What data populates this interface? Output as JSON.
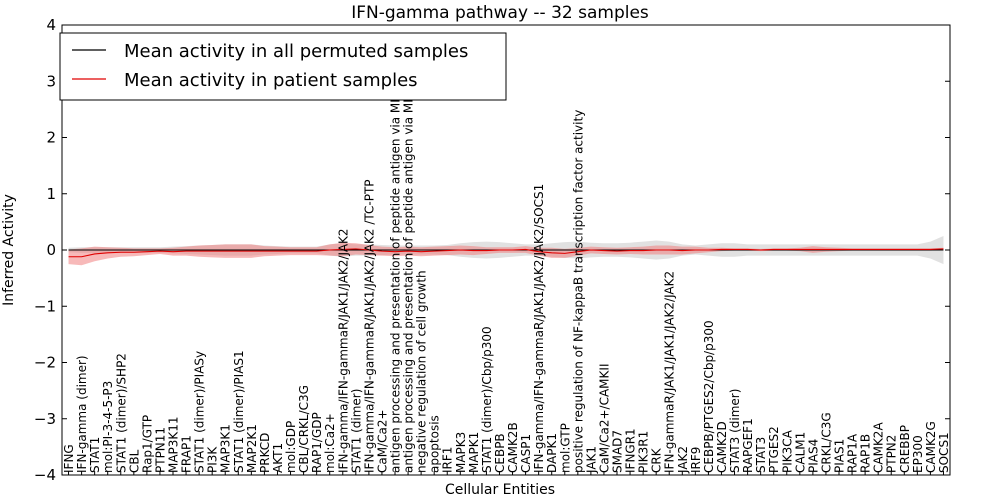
{
  "chart_data": {
    "type": "line",
    "title": "IFN-gamma pathway -- 32 samples",
    "xlabel": "Cellular Entities",
    "ylabel": "Inferred Activity",
    "ylim": [
      -4,
      4
    ],
    "yticks": [
      -4,
      -3,
      -2,
      -1,
      0,
      1,
      2,
      3,
      4
    ],
    "ytick_labels": [
      "−4",
      "−3",
      "−2",
      "−1",
      "0",
      "1",
      "2",
      "3",
      "4"
    ],
    "legend_position": "top-left",
    "categories": [
      "IFNG",
      "IFN-gamma (dimer)",
      "STAT1",
      "mol:PI-3-4-5-P3",
      "STAT1 (dimer)/SHP2",
      "CBL",
      "Rap1/GTP",
      "PTPN11",
      "MAP3K11",
      "FRAP1",
      "STAT1 (dimer)/PIASy",
      "PI3K",
      "MAP3K1",
      "STAT1 (dimer)/PIAS1",
      "MAP2K1",
      "PRKCD",
      "AKT1",
      "mol:GDP",
      "CBL/CRKL/C3G",
      "RAP1/GDP",
      "mol:Ca2+",
      "IFN-gamma/IFN-gammaR/JAK1/JAK2/JAK2",
      "STAT1 (dimer)",
      "IFN-gamma/IFN-gammaR/JAK1/JAK2/JAK2  /TC-PTP",
      "CaM/Ca2+",
      "antigen processing and presentation of peptide antigen via MHC class I",
      "antigen processing and presentation of peptide antigen via MHC class II",
      "negative regulation of cell growth",
      "apoptosis",
      "IRF1",
      "MAPK3",
      "MAPK1",
      "STAT1 (dimer)/Cbp/p300",
      "CEBPB",
      "CAMK2B",
      "CASP1",
      "IFN-gamma/IFN-gammaR/JAK1/JAK2/JAK2/SOCS1",
      "DAPK1",
      "mol:GTP",
      "positive regulation of NF-kappaB transcription factor activity",
      "JAK1",
      "CaM/Ca2+/CAMKII",
      "SMAD7",
      "IFNGR1",
      "PIK3R1",
      "CRK",
      "IFN-gammaR/JAK1/JAK1/JAK2/JAK2",
      "JAK2",
      "IRF9",
      "CEBPB/PTGES2/Cbp/p300",
      "CAMK2D",
      "STAT3 (dimer)",
      "RAPGEF1",
      "STAT3",
      "PTGES2",
      "PIK3CA",
      "CALM1",
      "PIAS4",
      "CRKL/C3G",
      "PIAS1",
      "RAP1A",
      "RAP1B",
      "CAMK2A",
      "PTPN2",
      "CREBBP",
      "EP300",
      "CAMK2G",
      "SOCS1"
    ],
    "series": [
      {
        "name": "Mean activity in all permuted samples",
        "color": "#000000",
        "values": [
          0,
          0,
          0,
          0,
          0,
          0,
          0,
          0,
          0,
          0,
          0,
          0,
          0,
          0,
          0,
          0,
          0,
          0,
          0,
          0,
          0,
          0,
          0,
          0,
          0,
          0,
          0,
          0,
          0,
          0,
          0,
          0,
          0,
          0,
          0,
          0,
          0,
          0,
          0,
          0,
          0,
          0,
          0,
          0,
          0,
          0,
          0,
          0,
          0,
          0,
          0,
          0,
          0,
          0,
          0,
          0,
          0,
          0,
          0,
          0,
          0,
          0,
          0,
          0,
          0,
          0,
          0,
          0
        ],
        "band": [
          0.04,
          0.05,
          0.05,
          0.05,
          0.05,
          0.05,
          0.05,
          0.05,
          0.06,
          0.07,
          0.08,
          0.09,
          0.1,
          0.1,
          0.1,
          0.08,
          0.07,
          0.06,
          0.06,
          0.06,
          0.1,
          0.12,
          0.1,
          0.1,
          0.09,
          0.08,
          0.08,
          0.08,
          0.08,
          0.09,
          0.12,
          0.14,
          0.15,
          0.14,
          0.12,
          0.1,
          0.1,
          0.12,
          0.14,
          0.15,
          0.13,
          0.12,
          0.12,
          0.13,
          0.15,
          0.17,
          0.15,
          0.1,
          0.08,
          0.1,
          0.12,
          0.12,
          0.1,
          0.1,
          0.1,
          0.1,
          0.1,
          0.1,
          0.1,
          0.1,
          0.1,
          0.1,
          0.1,
          0.1,
          0.1,
          0.1,
          0.15,
          0.25
        ]
      },
      {
        "name": "Mean activity in patient samples",
        "color": "#e00000",
        "values": [
          -0.12,
          -0.12,
          -0.07,
          -0.05,
          -0.04,
          -0.04,
          -0.03,
          -0.02,
          -0.03,
          -0.02,
          -0.02,
          -0.02,
          -0.02,
          -0.02,
          -0.02,
          -0.02,
          -0.02,
          -0.02,
          -0.02,
          -0.02,
          0.0,
          0.01,
          0.02,
          0.0,
          -0.02,
          -0.03,
          -0.02,
          -0.03,
          -0.02,
          -0.01,
          0.0,
          -0.01,
          -0.01,
          0.0,
          0.0,
          0.01,
          -0.03,
          -0.05,
          -0.06,
          -0.03,
          0.0,
          -0.01,
          -0.02,
          -0.01,
          -0.01,
          0.0,
          0.0,
          -0.01,
          0.0,
          0.0,
          0.01,
          0.01,
          0.01,
          0.0,
          0.01,
          0.01,
          0.01,
          0.01,
          0.01,
          0.01,
          0.01,
          0.01,
          0.01,
          0.01,
          0.01,
          0.01,
          0.01,
          0.02
        ],
        "band": [
          0.13,
          0.15,
          0.13,
          0.1,
          0.08,
          0.07,
          0.06,
          0.05,
          0.07,
          0.08,
          0.1,
          0.11,
          0.12,
          0.12,
          0.12,
          0.09,
          0.08,
          0.07,
          0.07,
          0.07,
          0.1,
          0.12,
          0.1,
          0.09,
          0.08,
          0.08,
          0.08,
          0.08,
          0.08,
          0.08,
          0.08,
          0.08,
          0.06,
          0.05,
          0.05,
          0.06,
          0.07,
          0.09,
          0.08,
          0.07,
          0.06,
          0.06,
          0.06,
          0.06,
          0.07,
          0.08,
          0.08,
          0.07,
          0.06,
          0.04,
          0.03,
          0.02,
          0.02,
          0.02,
          0.02,
          0.02,
          0.03,
          0.06,
          0.04,
          0.03,
          0.02,
          0.02,
          0.02,
          0.02,
          0.02,
          0.02,
          0.02,
          0.02
        ]
      }
    ]
  }
}
